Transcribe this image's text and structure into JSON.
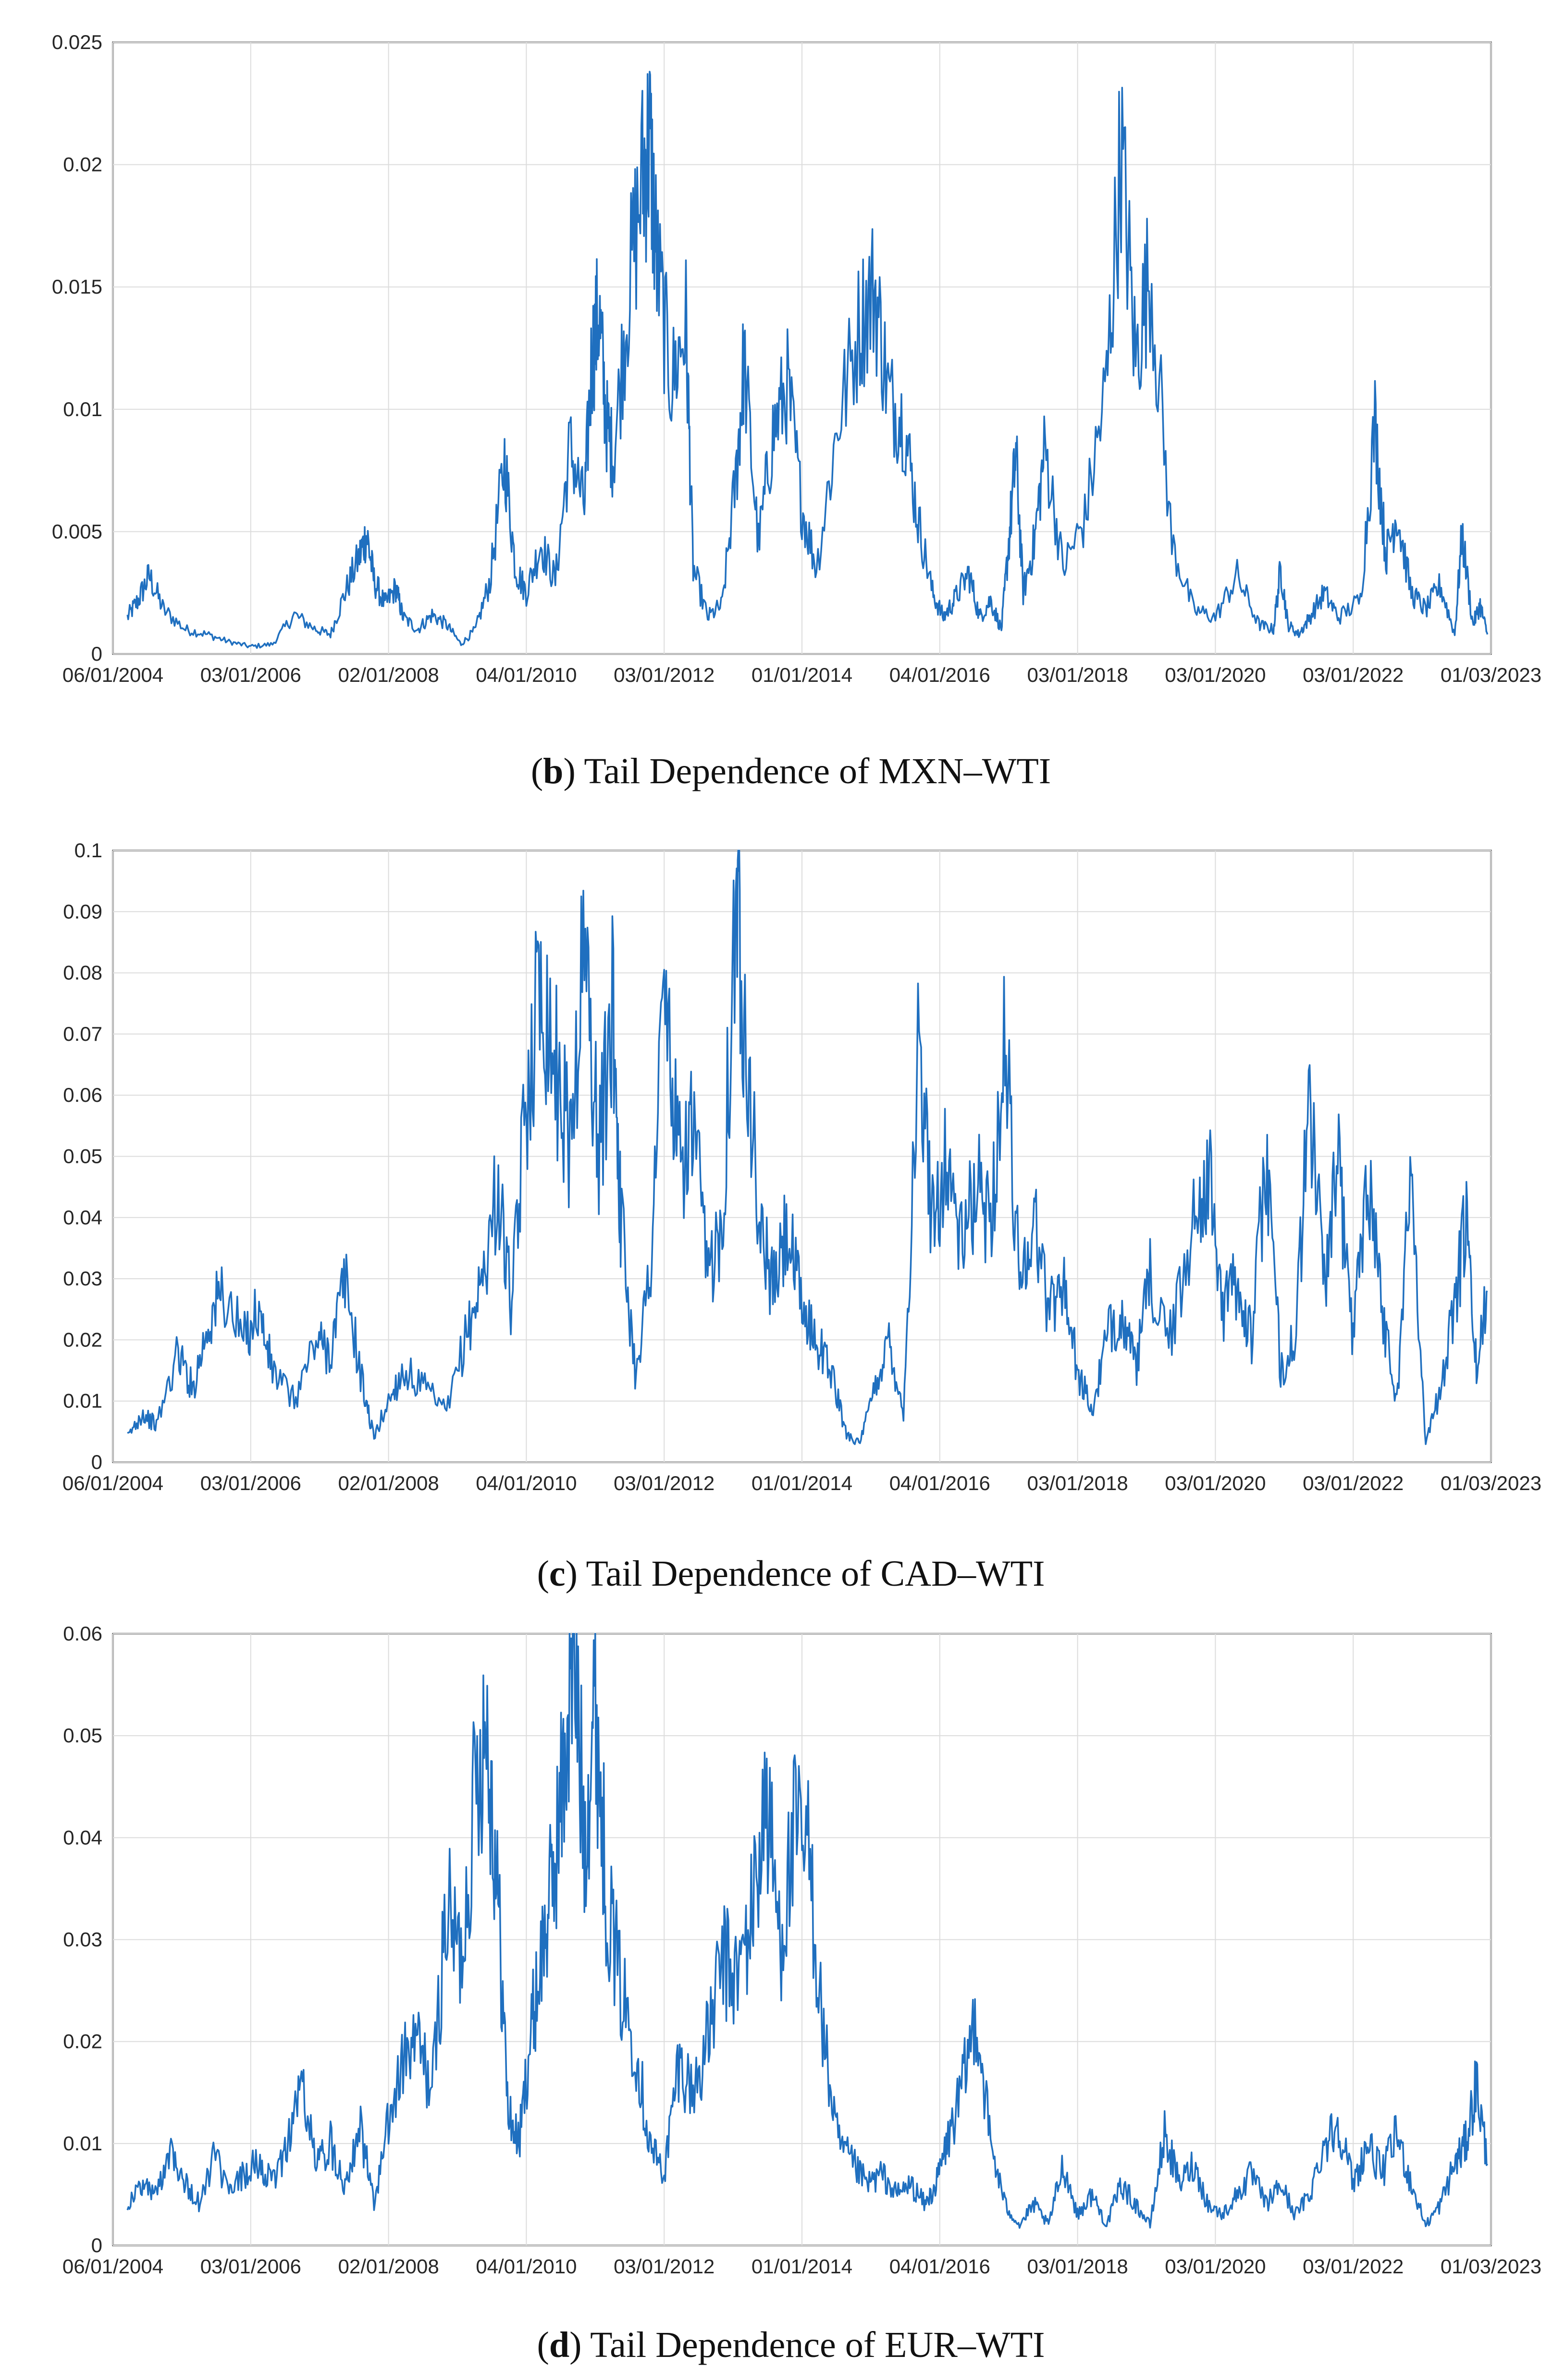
{
  "figure": {
    "panels": [
      {
        "id": "b",
        "letter": "b",
        "caption": "Tail Dependence of MXN–WTI"
      },
      {
        "id": "c",
        "letter": "c",
        "caption": "Tail Dependence of CAD–WTI"
      },
      {
        "id": "d",
        "letter": "d",
        "caption": "Tail Dependence of EUR–WTI"
      }
    ]
  },
  "chart_data": [
    {
      "type": "line",
      "title": "",
      "caption_letter": "b",
      "caption": "Tail Dependence of MXN–WTI",
      "xlabel": "",
      "ylabel": "",
      "grid": true,
      "line_color": "#1f6fbf",
      "x_ticks": [
        "06/01/2004",
        "03/01/2006",
        "02/01/2008",
        "04/01/2010",
        "03/01/2012",
        "01/01/2014",
        "04/01/2016",
        "03/01/2018",
        "03/01/2020",
        "03/01/2022",
        "01/03/2023"
      ],
      "y_ticks": [
        "0",
        "0.005",
        "0.01",
        "0.015",
        "0.02",
        "0.025"
      ],
      "ylim": [
        0,
        0.025
      ],
      "xlim_years": [
        2004.0,
        2023.0
      ],
      "series": [
        {
          "name": "MXN–WTI",
          "x": [
            2004.2,
            2004.35,
            2004.5,
            2004.7,
            2005.0,
            2005.3,
            2005.6,
            2005.9,
            2006.2,
            2006.5,
            2006.8,
            2007.0,
            2007.2,
            2007.4,
            2007.5,
            2007.6,
            2007.75,
            2007.9,
            2008.0,
            2008.2,
            2008.4,
            2008.6,
            2008.8,
            2009.0,
            2009.2,
            2009.4,
            2009.55,
            2009.7,
            2009.9,
            2010.1,
            2010.3,
            2010.5,
            2010.6,
            2010.7,
            2010.8,
            2010.9,
            2011.1,
            2011.3,
            2011.4,
            2011.5,
            2011.7,
            2011.9,
            2012.0,
            2012.2,
            2012.4,
            2012.6,
            2012.7,
            2012.9,
            2013.1,
            2013.3,
            2013.5,
            2013.7,
            2014.0,
            2014.3,
            2014.5,
            2014.7,
            2014.9,
            2015.1,
            2015.3,
            2015.45,
            2015.6,
            2015.8,
            2015.95,
            2016.1,
            2016.25,
            2016.35,
            2016.45,
            2016.55,
            2016.7,
            2016.85,
            2017.1,
            2017.4,
            2017.7,
            2017.9,
            2018.1,
            2018.3,
            2018.6,
            2018.9,
            2019.2,
            2019.5,
            2019.8,
            2020.0,
            2020.1,
            2020.2,
            2020.35,
            2020.5,
            2020.7,
            2020.9,
            2021.2,
            2021.4,
            2021.55,
            2021.7,
            2021.9,
            2022.1,
            2022.3,
            2022.5,
            2022.6,
            2022.75,
            2022.85,
            2022.95
          ],
          "values": [
            0.0015,
            0.0022,
            0.0032,
            0.0018,
            0.001,
            0.0008,
            0.0005,
            0.0003,
            0.0004,
            0.0016,
            0.001,
            0.0008,
            0.0025,
            0.004,
            0.0049,
            0.003,
            0.002,
            0.0027,
            0.0015,
            0.001,
            0.0016,
            0.0012,
            0.0004,
            0.001,
            0.003,
            0.008,
            0.0035,
            0.0025,
            0.0045,
            0.003,
            0.0085,
            0.006,
            0.012,
            0.014,
            0.0095,
            0.008,
            0.0145,
            0.0195,
            0.021,
            0.016,
            0.011,
            0.0135,
            0.0035,
            0.0015,
            0.002,
            0.0075,
            0.012,
            0.0045,
            0.009,
            0.011,
            0.006,
            0.0035,
            0.0095,
            0.0135,
            0.015,
            0.0105,
            0.0095,
            0.0055,
            0.0025,
            0.0015,
            0.0022,
            0.0033,
            0.0015,
            0.0022,
            0.001,
            0.0045,
            0.0082,
            0.0025,
            0.0045,
            0.0085,
            0.0035,
            0.0055,
            0.011,
            0.0207,
            0.012,
            0.0158,
            0.0045,
            0.0018,
            0.0015,
            0.0032,
            0.0012,
            0.001,
            0.0035,
            0.0012,
            0.0008,
            0.0015,
            0.0025,
            0.0015,
            0.0022,
            0.0095,
            0.004,
            0.0058,
            0.0025,
            0.0018,
            0.0028,
            0.0008,
            0.0049,
            0.0012,
            0.002,
            0.0008
          ]
        }
      ]
    },
    {
      "type": "line",
      "title": "",
      "caption_letter": "c",
      "caption": "Tail Dependence of CAD–WTI",
      "xlabel": "",
      "ylabel": "",
      "grid": true,
      "line_color": "#1f6fbf",
      "x_ticks": [
        "06/01/2004",
        "03/01/2006",
        "02/01/2008",
        "04/01/2010",
        "03/01/2012",
        "01/01/2014",
        "04/01/2016",
        "03/01/2018",
        "03/01/2020",
        "03/01/2022",
        "01/03/2023"
      ],
      "y_ticks": [
        "0",
        "0.01",
        "0.02",
        "0.03",
        "0.04",
        "0.05",
        "0.06",
        "0.07",
        "0.08",
        "0.09",
        "0.1"
      ],
      "ylim": [
        0,
        0.1
      ],
      "xlim_years": [
        2004.0,
        2023.0
      ],
      "series": [
        {
          "name": "CAD–WTI",
          "x": [
            2004.2,
            2004.4,
            2004.6,
            2004.9,
            2005.1,
            2005.3,
            2005.5,
            2005.8,
            2006.0,
            2006.2,
            2006.5,
            2006.8,
            2007.0,
            2007.2,
            2007.45,
            2007.6,
            2007.8,
            2008.0,
            2008.3,
            2008.6,
            2008.9,
            2009.1,
            2009.3,
            2009.5,
            2009.7,
            2009.9,
            2010.1,
            2010.3,
            2010.5,
            2010.7,
            2010.9,
            2011.0,
            2011.2,
            2011.4,
            2011.6,
            2011.8,
            2012.0,
            2012.2,
            2012.4,
            2012.6,
            2012.7,
            2012.9,
            2013.1,
            2013.3,
            2013.5,
            2013.7,
            2013.9,
            2014.1,
            2014.3,
            2014.5,
            2014.7,
            2014.9,
            2015.1,
            2015.3,
            2015.5,
            2015.7,
            2015.9,
            2016.1,
            2016.3,
            2016.5,
            2016.7,
            2016.9,
            2017.1,
            2017.3,
            2017.5,
            2017.7,
            2017.9,
            2018.1,
            2018.3,
            2018.6,
            2018.9,
            2019.1,
            2019.3,
            2019.5,
            2019.7,
            2019.9,
            2020.1,
            2020.3,
            2020.5,
            2020.7,
            2020.9,
            2021.1,
            2021.3,
            2021.5,
            2021.7,
            2021.9,
            2022.1,
            2022.3,
            2022.5,
            2022.65,
            2022.8,
            2022.95
          ],
          "values": [
            0.004,
            0.008,
            0.006,
            0.018,
            0.012,
            0.022,
            0.028,
            0.02,
            0.025,
            0.015,
            0.01,
            0.02,
            0.018,
            0.03,
            0.012,
            0.004,
            0.01,
            0.015,
            0.012,
            0.008,
            0.022,
            0.03,
            0.045,
            0.025,
            0.06,
            0.08,
            0.065,
            0.052,
            0.085,
            0.05,
            0.075,
            0.04,
            0.015,
            0.03,
            0.078,
            0.048,
            0.055,
            0.03,
            0.04,
            0.094,
            0.075,
            0.04,
            0.028,
            0.038,
            0.025,
            0.02,
            0.015,
            0.005,
            0.003,
            0.012,
            0.02,
            0.008,
            0.066,
            0.04,
            0.05,
            0.035,
            0.045,
            0.04,
            0.068,
            0.03,
            0.04,
            0.025,
            0.03,
            0.015,
            0.008,
            0.02,
            0.025,
            0.015,
            0.03,
            0.02,
            0.04,
            0.048,
            0.025,
            0.03,
            0.02,
            0.05,
            0.015,
            0.02,
            0.059,
            0.03,
            0.048,
            0.02,
            0.05,
            0.025,
            0.01,
            0.048,
            0.003,
            0.012,
            0.025,
            0.04,
            0.015,
            0.028
          ]
        }
      ]
    },
    {
      "type": "line",
      "title": "",
      "caption_letter": "d",
      "caption": "Tail Dependence of EUR–WTI",
      "xlabel": "",
      "ylabel": "",
      "grid": true,
      "line_color": "#1f6fbf",
      "x_ticks": [
        "06/01/2004",
        "03/01/2006",
        "02/01/2008",
        "04/01/2010",
        "03/01/2012",
        "01/01/2014",
        "04/01/2016",
        "03/01/2018",
        "03/01/2020",
        "03/01/2022",
        "01/03/2023"
      ],
      "y_ticks": [
        "0",
        "0.01",
        "0.02",
        "0.03",
        "0.04",
        "0.05",
        "0.06"
      ],
      "ylim": [
        0,
        0.06
      ],
      "xlim_years": [
        2004.0,
        2023.0
      ],
      "series": [
        {
          "name": "EUR–WTI",
          "x": [
            2004.2,
            2004.4,
            2004.6,
            2004.8,
            2005.0,
            2005.2,
            2005.4,
            2005.6,
            2005.8,
            2006.0,
            2006.2,
            2006.4,
            2006.6,
            2006.8,
            2007.0,
            2007.2,
            2007.4,
            2007.6,
            2007.8,
            2008.0,
            2008.2,
            2008.4,
            2008.6,
            2008.8,
            2009.0,
            2009.15,
            2009.3,
            2009.45,
            2009.6,
            2009.75,
            2009.9,
            2010.05,
            2010.2,
            2010.35,
            2010.5,
            2010.65,
            2010.8,
            2011.0,
            2011.2,
            2011.4,
            2011.6,
            2011.8,
            2012.0,
            2012.2,
            2012.4,
            2012.6,
            2012.8,
            2013.0,
            2013.2,
            2013.4,
            2013.6,
            2013.8,
            2014.0,
            2014.2,
            2014.4,
            2014.6,
            2014.8,
            2015.0,
            2015.2,
            2015.35,
            2015.5,
            2015.7,
            2015.9,
            2016.1,
            2016.3,
            2016.5,
            2016.7,
            2016.9,
            2017.1,
            2017.3,
            2017.5,
            2017.7,
            2017.9,
            2018.1,
            2018.3,
            2018.5,
            2018.7,
            2018.9,
            2019.1,
            2019.3,
            2019.5,
            2019.7,
            2019.9,
            2020.1,
            2020.3,
            2020.5,
            2020.7,
            2020.9,
            2021.1,
            2021.3,
            2021.5,
            2021.7,
            2021.9,
            2022.1,
            2022.3,
            2022.5,
            2022.65,
            2022.8,
            2022.95
          ],
          "values": [
            0.004,
            0.006,
            0.005,
            0.01,
            0.006,
            0.004,
            0.009,
            0.005,
            0.007,
            0.008,
            0.006,
            0.01,
            0.016,
            0.008,
            0.01,
            0.006,
            0.012,
            0.004,
            0.012,
            0.018,
            0.02,
            0.015,
            0.033,
            0.028,
            0.045,
            0.052,
            0.035,
            0.013,
            0.01,
            0.02,
            0.028,
            0.035,
            0.045,
            0.059,
            0.04,
            0.054,
            0.035,
            0.025,
            0.02,
            0.01,
            0.007,
            0.018,
            0.015,
            0.02,
            0.028,
            0.026,
            0.032,
            0.044,
            0.03,
            0.04,
            0.038,
            0.02,
            0.01,
            0.008,
            0.006,
            0.007,
            0.005,
            0.006,
            0.004,
            0.006,
            0.01,
            0.015,
            0.023,
            0.01,
            0.004,
            0.002,
            0.004,
            0.002,
            0.008,
            0.003,
            0.005,
            0.002,
            0.006,
            0.004,
            0.002,
            0.011,
            0.006,
            0.008,
            0.004,
            0.003,
            0.005,
            0.007,
            0.004,
            0.006,
            0.003,
            0.005,
            0.01,
            0.012,
            0.006,
            0.01,
            0.007,
            0.011,
            0.006,
            0.002,
            0.004,
            0.008,
            0.01,
            0.016,
            0.008
          ]
        }
      ]
    }
  ]
}
